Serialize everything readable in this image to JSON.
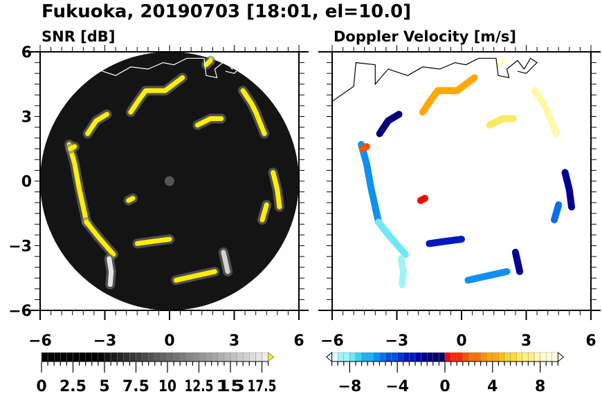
{
  "title": "Fukuoka, 20190703 [18:01, el=10.0]",
  "chart_data": [
    {
      "type": "heatmap",
      "title": "SNR [dB]",
      "xlim": [
        -6,
        6
      ],
      "ylim": [
        -6,
        6
      ],
      "xticks": [
        "-6",
        "-3",
        "0",
        "3",
        "6"
      ],
      "yticks": [
        "6",
        "3",
        "0",
        "-3",
        "-6"
      ],
      "colorbar": {
        "min": 0,
        "max": 18,
        "step": 0.5,
        "ticklabels": [
          "0",
          "2.5",
          "5",
          "7.5",
          "10",
          "12.5",
          "15",
          "17.5"
        ],
        "extend": "max"
      },
      "range_ring_radius": 6
    },
    {
      "type": "heatmap",
      "title": "Doppler Velocity [m/s]",
      "xlim": [
        -6,
        6
      ],
      "ylim": [
        -6,
        6
      ],
      "xticks": [
        "-6",
        "-3",
        "0",
        "3",
        "6"
      ],
      "colorbar": {
        "min": -9.5,
        "max": 9.5,
        "step": 0.5,
        "ticklabels": [
          "−8",
          "−4",
          "0",
          "4",
          "8"
        ],
        "extend": "both"
      }
    }
  ],
  "echoes": [
    {
      "pts": [
        [
          -4.65,
          1.7
        ],
        [
          -4.4,
          0.8
        ],
        [
          -4.2,
          -0.3
        ],
        [
          -4.0,
          -1.2
        ],
        [
          -3.85,
          -1.9
        ]
      ],
      "snr": 18,
      "vel": -6
    },
    {
      "pts": [
        [
          -3.85,
          -1.9
        ],
        [
          -3.3,
          -2.6
        ],
        [
          -2.6,
          -3.4
        ]
      ],
      "snr": 18,
      "vel": -7.5
    },
    {
      "pts": [
        [
          -2.8,
          -3.6
        ],
        [
          -2.7,
          -4.2
        ],
        [
          -2.75,
          -4.8
        ]
      ],
      "snr": 17,
      "vel": -8.5
    },
    {
      "pts": [
        [
          -3.8,
          2.2
        ],
        [
          -3.4,
          2.8
        ],
        [
          -2.9,
          3.1
        ]
      ],
      "snr": 18,
      "vel": -1
    },
    {
      "pts": [
        [
          -4.6,
          1.5
        ],
        [
          -4.4,
          1.6
        ]
      ],
      "snr": 18,
      "vel": 1.5
    },
    {
      "pts": [
        [
          -1.8,
          3.2
        ],
        [
          -1.4,
          3.8
        ],
        [
          -1.1,
          4.2
        ],
        [
          -0.2,
          4.2
        ],
        [
          0.6,
          4.8
        ]
      ],
      "snr": 18,
      "vel": 4
    },
    {
      "pts": [
        [
          1.7,
          5.4
        ],
        [
          1.9,
          5.6
        ]
      ],
      "snr": 18,
      "vel": 8.5
    },
    {
      "pts": [
        [
          1.3,
          2.6
        ],
        [
          1.9,
          2.9
        ],
        [
          2.4,
          2.9
        ]
      ],
      "snr": 18,
      "vel": 6.5
    },
    {
      "pts": [
        [
          3.4,
          4.2
        ],
        [
          3.8,
          3.6
        ],
        [
          4.0,
          3.2
        ],
        [
          4.4,
          2.2
        ]
      ],
      "snr": 18,
      "vel": 7.5
    },
    {
      "pts": [
        [
          4.8,
          0.4
        ],
        [
          5.0,
          -0.4
        ],
        [
          5.1,
          -1.2
        ]
      ],
      "snr": 18,
      "vel": -1.5
    },
    {
      "pts": [
        [
          4.5,
          -1.1
        ],
        [
          4.3,
          -1.8
        ]
      ],
      "snr": 18,
      "vel": -5
    },
    {
      "pts": [
        [
          0.3,
          -4.6
        ],
        [
          1.2,
          -4.4
        ],
        [
          2.1,
          -4.2
        ]
      ],
      "snr": 18,
      "vel": -5.5
    },
    {
      "pts": [
        [
          -1.5,
          -2.9
        ],
        [
          -0.8,
          -2.8
        ],
        [
          0,
          -2.7
        ]
      ],
      "snr": 18,
      "vel": -3
    },
    {
      "pts": [
        [
          2.5,
          -3.3
        ],
        [
          2.7,
          -4.2
        ]
      ],
      "snr": 16,
      "vel": -2
    },
    {
      "pts": [
        [
          -1.9,
          -0.9
        ],
        [
          -1.7,
          -0.8
        ]
      ],
      "snr": 18,
      "vel": 0.5
    }
  ]
}
